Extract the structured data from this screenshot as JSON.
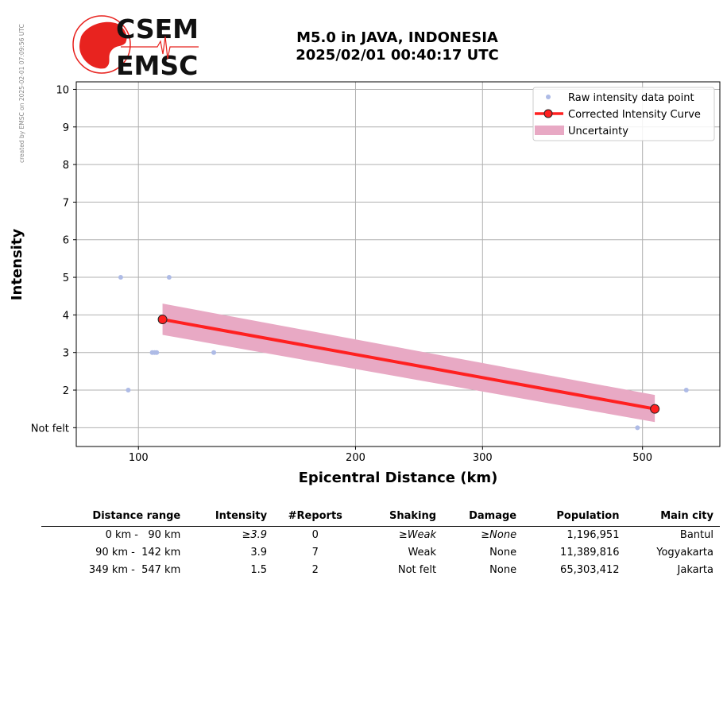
{
  "created_note": "created by EMSC on 2025-02-01 07:09:56 UTC",
  "logo": {
    "line1": "CSEM",
    "line2": "EMSC",
    "accent": "#e8231f"
  },
  "header": {
    "title_line1": "M5.0 in JAVA, INDONESIA",
    "title_line2": "2025/02/01 00:40:17 UTC"
  },
  "chart_data": {
    "type": "scatter",
    "xlabel": "Epicentral Distance (km)",
    "ylabel": "Intensity",
    "x_scale": "log",
    "xlim": [
      82,
      640
    ],
    "ylim": [
      0.5,
      10.2
    ],
    "x_ticks": [
      100,
      200,
      300,
      500
    ],
    "y_ticks": [
      {
        "value": 1,
        "label": "Not felt"
      },
      {
        "value": 2,
        "label": "2"
      },
      {
        "value": 3,
        "label": "3"
      },
      {
        "value": 4,
        "label": "4"
      },
      {
        "value": 5,
        "label": "5"
      },
      {
        "value": 6,
        "label": "6"
      },
      {
        "value": 7,
        "label": "7"
      },
      {
        "value": 8,
        "label": "8"
      },
      {
        "value": 9,
        "label": "9"
      },
      {
        "value": 10,
        "label": "10"
      }
    ],
    "grid": true,
    "legend_position": "top-right",
    "series": [
      {
        "name": "Raw intensity data point",
        "kind": "points",
        "color": "#aebbe6",
        "x": [
          94.5,
          96.8,
          104.5,
          105.3,
          106.0,
          110.3,
          127.2,
          492,
          575
        ],
        "y": [
          5,
          2,
          3,
          3,
          3,
          5,
          3,
          1,
          2
        ]
      },
      {
        "name": "Corrected Intensity Curve",
        "kind": "line",
        "color": "#ff2020",
        "x": [
          108,
          520
        ],
        "y": [
          3.88,
          1.5
        ]
      },
      {
        "name": "Uncertainty",
        "kind": "band",
        "color": "#e8a9c4",
        "x": [
          108,
          520
        ],
        "upper": [
          4.3,
          1.87
        ],
        "lower": [
          3.47,
          1.15
        ]
      }
    ]
  },
  "table": {
    "headers": [
      "Distance range",
      "Intensity",
      "#Reports",
      "Shaking",
      "Damage",
      "Population",
      "Main city"
    ],
    "rows": [
      {
        "distance": "0 km -   90 km",
        "intensity": "≥3.9",
        "reports": "0",
        "shaking": "≥Weak",
        "damage": "≥None",
        "population": "1,196,951",
        "city": "Bantul"
      },
      {
        "distance": "90 km -  142 km",
        "intensity": "3.9",
        "reports": "7",
        "shaking": "Weak",
        "damage": "None",
        "population": "11,389,816",
        "city": "Yogyakarta"
      },
      {
        "distance": "349 km -  547 km",
        "intensity": "1.5",
        "reports": "2",
        "shaking": "Not felt",
        "damage": "None",
        "population": "65,303,412",
        "city": "Jakarta"
      }
    ]
  }
}
